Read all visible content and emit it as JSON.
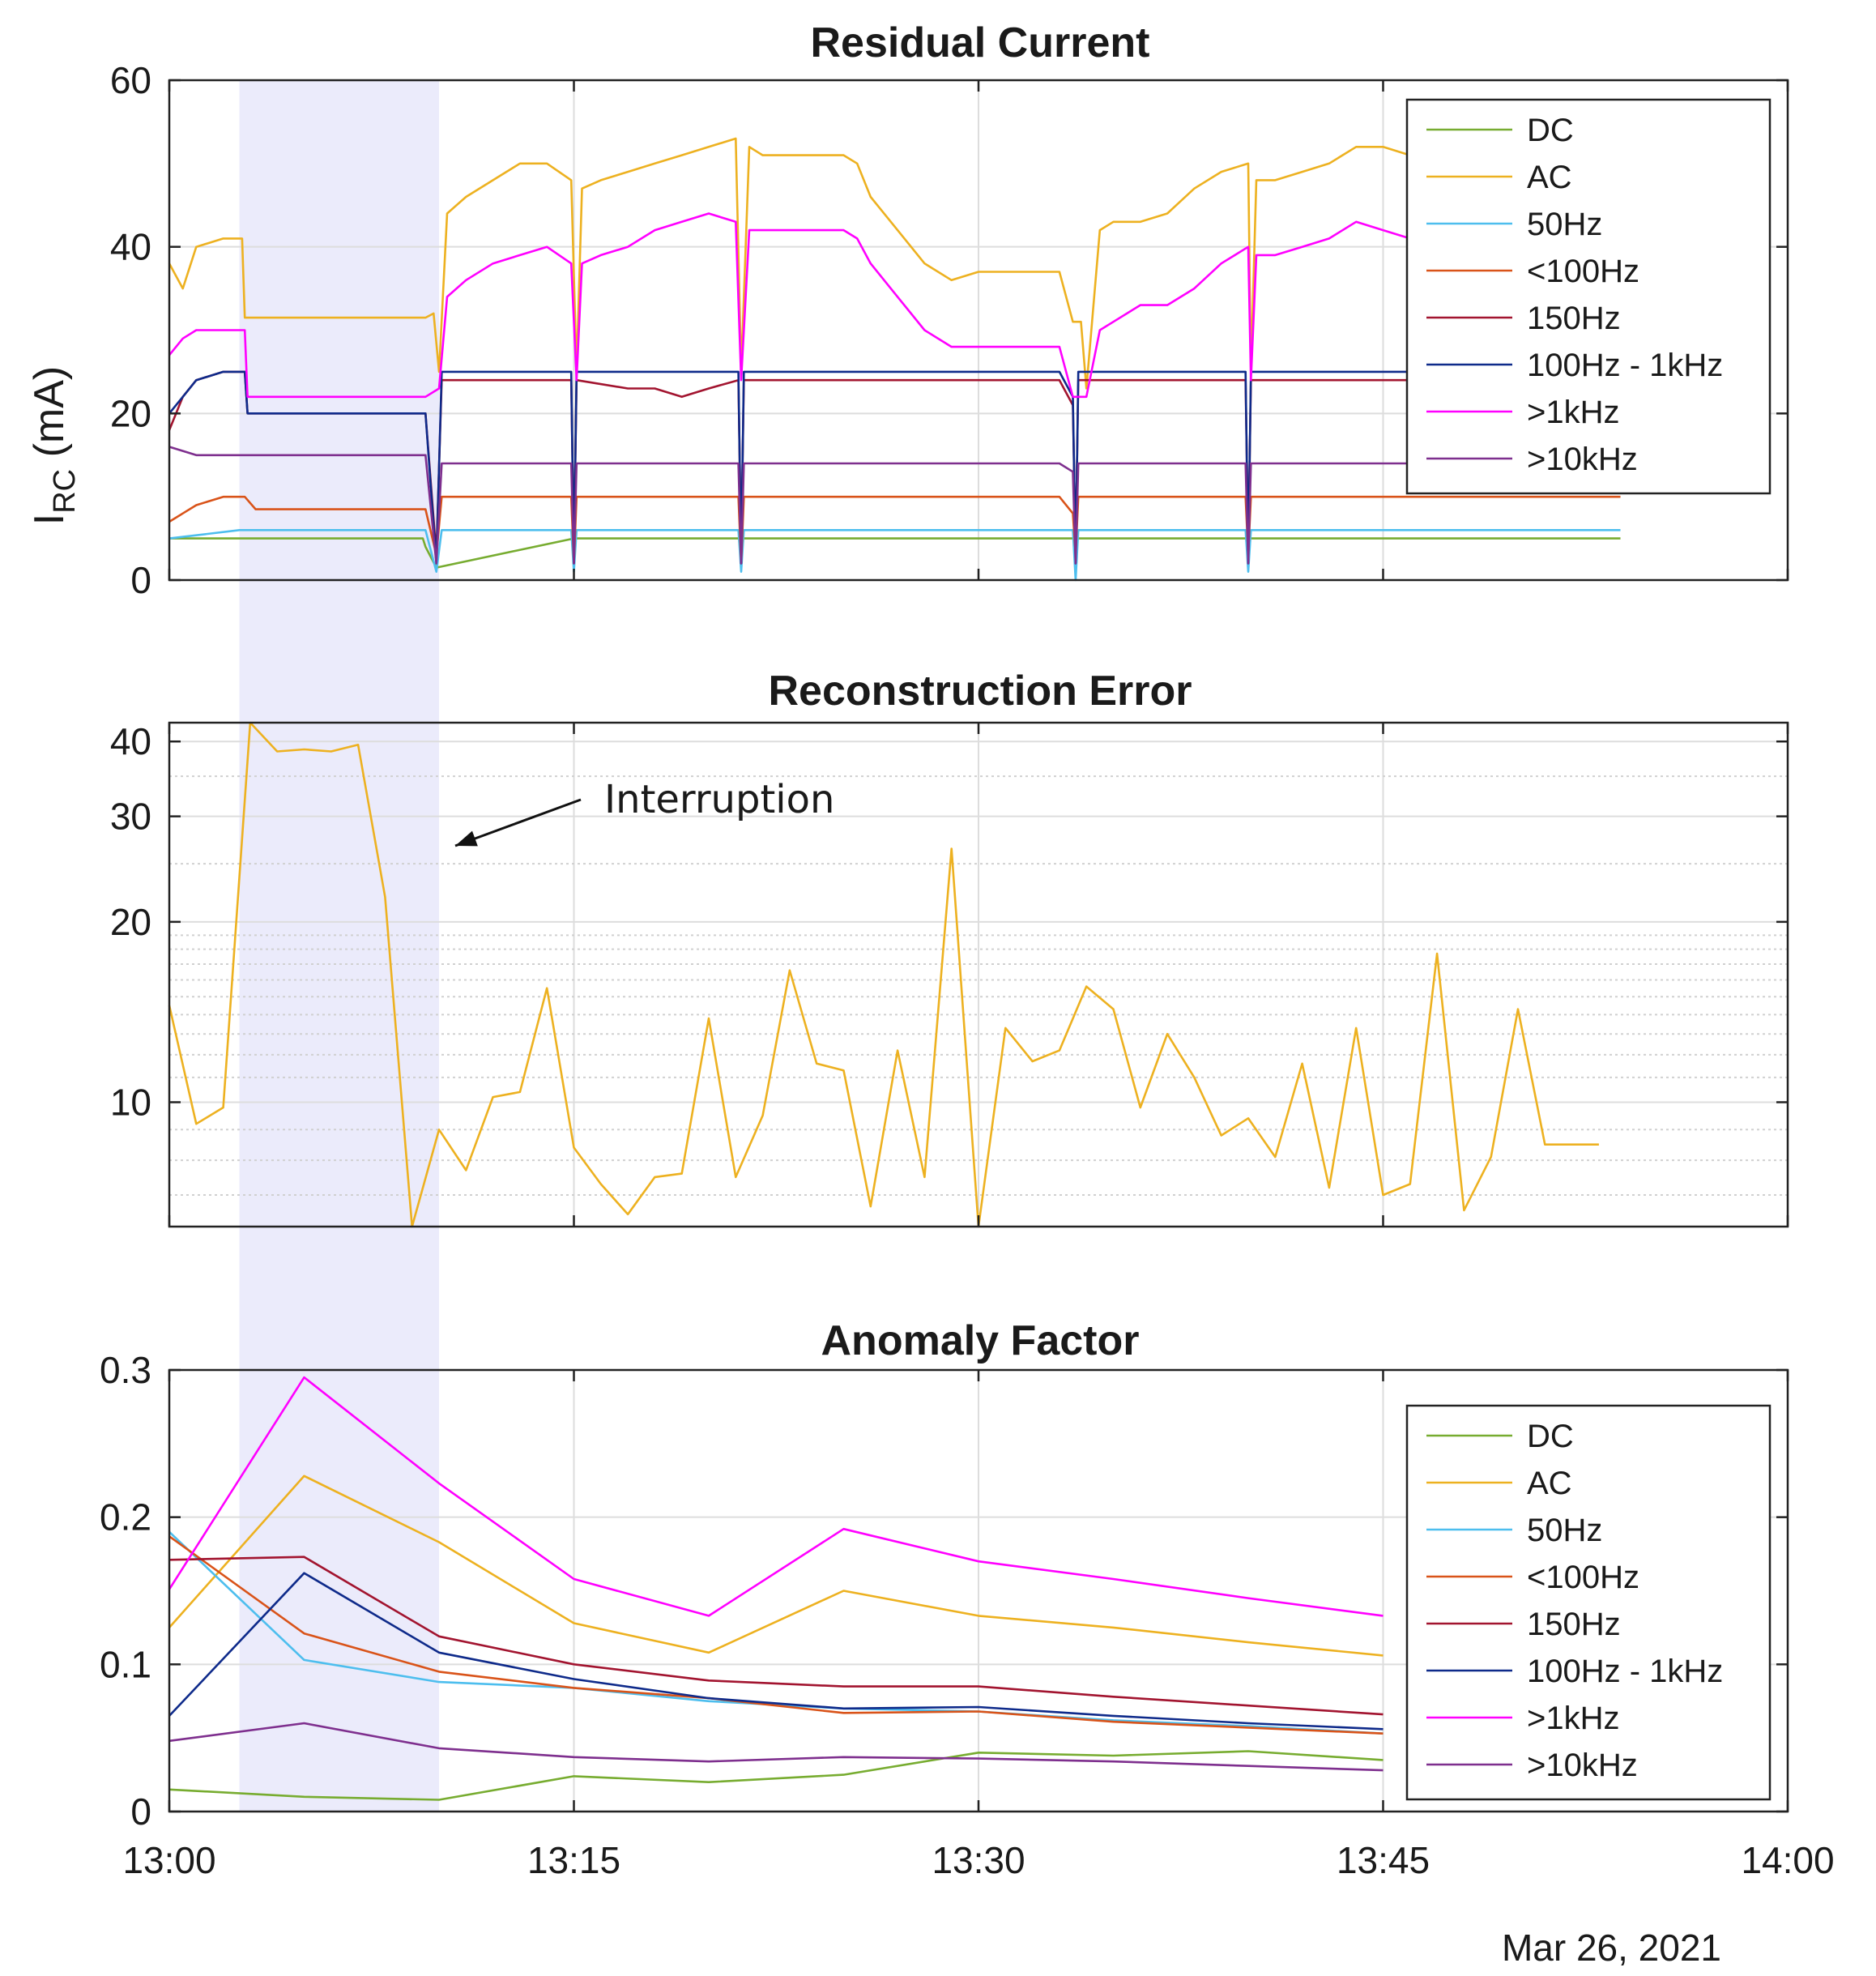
{
  "figure": {
    "date_label": "Mar 26, 2021",
    "x_axis": {
      "ticks": [
        {
          "min": 0,
          "label": "13:00"
        },
        {
          "min": 15,
          "label": "13:15"
        },
        {
          "min": 30,
          "label": "13:30"
        },
        {
          "min": 45,
          "label": "13:45"
        },
        {
          "min": 60,
          "label": "14:00"
        }
      ],
      "range_minutes": [
        0,
        60
      ]
    },
    "interruption_band_minutes": [
      2.6,
      10.0
    ],
    "colors": {
      "DC": "#77AC30",
      "AC": "#EDB120",
      "50Hz": "#4DBEEE",
      "<100Hz": "#D95319",
      "150Hz": "#A2142F",
      "100Hz - 1kHz": "#0E2A8A",
      ">1kHz": "#FF00FF",
      ">10kHz": "#7E2F8E",
      "band": "#EBEBFB",
      "grid": "#DDDDDD"
    }
  },
  "chart_data": [
    {
      "type": "line",
      "title": "Residual Current",
      "ylabel_main": "I",
      "ylabel_sub": "RC",
      "ylabel_unit": " (mA)",
      "ylim": [
        0,
        60
      ],
      "yticks": [
        "0",
        "20",
        "40",
        "60"
      ],
      "grid": true,
      "legend_placement": "top-right",
      "legend": [
        "DC",
        "AC",
        "50Hz",
        "<100Hz",
        "150Hz",
        "100Hz - 1kHz",
        ">1kHz",
        ">10kHz"
      ],
      "series": [
        {
          "name": "DC",
          "x": [
            0,
            2.5,
            2.6,
            9.4,
            9.5,
            9.9,
            15.0,
            15.1,
            21.2,
            21.3,
            33.5,
            33.6,
            40.0,
            40.1,
            53.8
          ],
          "y": [
            5,
            5,
            5,
            5,
            4,
            1.5,
            5,
            5,
            5,
            5,
            5,
            5,
            5,
            5,
            5
          ]
        },
        {
          "name": "AC",
          "x": [
            0,
            0.5,
            1,
            2,
            2.7,
            2.8,
            9.5,
            9.8,
            10.0,
            10.3,
            11,
            12,
            13,
            14,
            14.9,
            15.1,
            15.3,
            16,
            17,
            18,
            19,
            20,
            21,
            21.2,
            21.5,
            22,
            23,
            24,
            25,
            25.5,
            26,
            27,
            28,
            29,
            30,
            31,
            32,
            33,
            33.5,
            33.8,
            34.0,
            34.5,
            35,
            36,
            37,
            38,
            39,
            40,
            40.1,
            40.3,
            41,
            42,
            43,
            44,
            45,
            46,
            53.8
          ],
          "y": [
            38,
            35,
            40,
            41,
            41,
            31.5,
            31.5,
            32,
            25,
            44,
            46,
            48,
            50,
            50,
            48,
            25,
            47,
            48,
            49,
            50,
            51,
            52,
            53,
            25,
            52,
            51,
            51,
            51,
            51,
            50,
            46,
            42,
            38,
            36,
            37,
            37,
            37,
            37,
            31,
            31,
            23,
            42,
            43,
            43,
            44,
            47,
            49,
            50,
            25,
            48,
            48,
            49,
            50,
            52,
            52,
            51,
            51
          ]
        },
        {
          "name": "50Hz",
          "x": [
            0,
            2.6,
            9.5,
            9.9,
            10.1,
            14.9,
            15.0,
            15.1,
            21.1,
            21.2,
            21.3,
            33.5,
            33.6,
            33.7,
            39.9,
            40.0,
            40.1,
            46.5,
            53.8
          ],
          "y": [
            5,
            6,
            6,
            1,
            6,
            6,
            1,
            6,
            6,
            1,
            6,
            6,
            0,
            6,
            6,
            1,
            6,
            6,
            6
          ]
        },
        {
          "name": "<100Hz",
          "x": [
            0,
            0.5,
            1,
            2,
            2.8,
            3.2,
            9.5,
            9.9,
            10.1,
            14.9,
            15.0,
            15.1,
            21.1,
            21.2,
            21.3,
            33.0,
            33.5,
            33.6,
            33.7,
            39.9,
            40.0,
            40.1,
            53.8
          ],
          "y": [
            7,
            8,
            9,
            10,
            10,
            8.5,
            8.5,
            3,
            10,
            10,
            2,
            10,
            10,
            2,
            10,
            10,
            8,
            3,
            10,
            10,
            3,
            10,
            10
          ]
        },
        {
          "name": "150Hz",
          "x": [
            0,
            0.5,
            1,
            2,
            2.8,
            2.9,
            9.5,
            9.9,
            10.1,
            14.9,
            15.0,
            15.1,
            17,
            18,
            19,
            20,
            21.1,
            21.2,
            21.3,
            33.0,
            33.5,
            33.6,
            33.7,
            39.9,
            40.0,
            40.1,
            53.8
          ],
          "y": [
            18,
            22,
            24,
            25,
            25,
            20,
            20,
            3,
            24,
            24,
            3,
            24,
            23,
            23,
            22,
            23,
            24,
            3,
            24,
            24,
            21,
            3,
            24,
            24,
            3,
            24,
            24
          ]
        },
        {
          "name": "100Hz - 1kHz",
          "x": [
            0,
            0.5,
            1,
            2,
            2.8,
            2.9,
            9.5,
            9.9,
            10.1,
            14.9,
            15.0,
            15.1,
            21.1,
            21.2,
            21.3,
            33.0,
            33.5,
            33.6,
            33.7,
            39.9,
            40.0,
            40.1,
            53.8
          ],
          "y": [
            20,
            22,
            24,
            25,
            25,
            20,
            20,
            2,
            25,
            25,
            2,
            25,
            25,
            2,
            25,
            25,
            22,
            2,
            25,
            25,
            2,
            25,
            25
          ]
        },
        {
          "name": ">1kHz",
          "x": [
            0,
            0.5,
            1,
            2,
            2.8,
            2.9,
            9.5,
            10.0,
            10.3,
            11,
            12,
            13,
            14,
            14.9,
            15.1,
            15.3,
            16,
            17,
            18,
            19,
            20,
            21,
            21.2,
            21.5,
            22,
            24,
            25,
            25.5,
            26,
            27,
            28,
            29,
            30,
            31,
            32,
            33,
            33.5,
            33.8,
            34.0,
            34.5,
            35,
            36,
            37,
            38,
            39,
            40,
            40.1,
            40.3,
            41,
            42,
            43,
            44,
            45,
            46,
            53.8
          ],
          "y": [
            27,
            29,
            30,
            30,
            30,
            22,
            22,
            23,
            34,
            36,
            38,
            39,
            40,
            38,
            24,
            38,
            39,
            40,
            42,
            43,
            44,
            43,
            24,
            42,
            42,
            42,
            42,
            41,
            38,
            34,
            30,
            28,
            28,
            28,
            28,
            28,
            22,
            22,
            22,
            30,
            31,
            33,
            33,
            35,
            38,
            40,
            24,
            39,
            39,
            40,
            41,
            43,
            42,
            41,
            41
          ]
        },
        {
          "name": ">10kHz",
          "x": [
            0,
            0.5,
            1,
            2,
            2.8,
            2.9,
            9.5,
            9.9,
            10.1,
            14.9,
            15.0,
            15.1,
            21.1,
            21.2,
            21.3,
            33.0,
            33.5,
            33.6,
            33.7,
            39.9,
            40.0,
            40.1,
            53.8
          ],
          "y": [
            16,
            15.5,
            15,
            15,
            15,
            15,
            15,
            2,
            14,
            14,
            2,
            14,
            14,
            2,
            14,
            14,
            13,
            2,
            14,
            14,
            2,
            14,
            14
          ]
        }
      ]
    },
    {
      "type": "line",
      "title": "Reconstruction Error",
      "yscale": "log",
      "ylim": [
        6.2,
        43
      ],
      "yticks": [
        {
          "v": 10,
          "label": "10"
        },
        {
          "v": 20,
          "label": "20"
        },
        {
          "v": 30,
          "label": "30"
        },
        {
          "v": 40,
          "label": "40"
        }
      ],
      "minor_grid": [
        7,
        8,
        9,
        11,
        12,
        13,
        14,
        15,
        16,
        17,
        18,
        19,
        25,
        35
      ],
      "grid": true,
      "annotation": "Interruption",
      "series": [
        {
          "name": "AC",
          "x": [
            0,
            1,
            2,
            3,
            4,
            5,
            6,
            7,
            8,
            9,
            10,
            11,
            12,
            13,
            14,
            15,
            16,
            17,
            18,
            19,
            20,
            21,
            22,
            23,
            24,
            25,
            26,
            27,
            28,
            29,
            30,
            31,
            32,
            33,
            34,
            35,
            36,
            37,
            38,
            39,
            40,
            41,
            42,
            43,
            44,
            45,
            46,
            47,
            48,
            49,
            50,
            51,
            52,
            53
          ],
          "y": [
            14.5,
            9.2,
            9.8,
            43,
            38.5,
            38.8,
            38.5,
            39.5,
            22,
            6.2,
            9,
            7.7,
            10.2,
            10.4,
            15.5,
            8.4,
            7.3,
            6.5,
            7.5,
            7.6,
            13.8,
            7.5,
            9.5,
            16.6,
            11.6,
            11.3,
            6.7,
            12.2,
            7.5,
            26.5,
            6.2,
            13.3,
            11.7,
            12.2,
            15.6,
            14.3,
            9.8,
            13,
            11,
            8.8,
            9.4,
            8.1,
            11.6,
            7.2,
            13.3,
            7,
            7.3,
            17.7,
            6.6,
            8.1,
            14.3,
            8.5,
            8.5,
            8.5
          ]
        }
      ]
    },
    {
      "type": "line",
      "title": "Anomaly Factor",
      "ylim": [
        0,
        0.3
      ],
      "yticks": [
        "0",
        "0.1",
        "0.2",
        "0.3"
      ],
      "grid": true,
      "legend_placement": "top-right",
      "legend": [
        "DC",
        "AC",
        "50Hz",
        "<100Hz",
        "150Hz",
        "100Hz - 1kHz",
        ">1kHz",
        ">10kHz"
      ],
      "series": [
        {
          "name": "DC",
          "x": [
            0,
            5,
            10,
            15,
            20,
            25,
            30,
            35,
            40,
            45
          ],
          "y": [
            0.015,
            0.01,
            0.008,
            0.024,
            0.02,
            0.025,
            0.04,
            0.038,
            0.041,
            0.035
          ]
        },
        {
          "name": "AC",
          "x": [
            0,
            5,
            10,
            15,
            20,
            25,
            30,
            35,
            40,
            45
          ],
          "y": [
            0.125,
            0.228,
            0.183,
            0.128,
            0.108,
            0.15,
            0.133,
            0.125,
            0.115,
            0.106
          ]
        },
        {
          "name": "50Hz",
          "x": [
            0,
            5,
            10,
            15,
            20,
            25,
            30,
            35,
            40,
            45
          ],
          "y": [
            0.19,
            0.103,
            0.088,
            0.084,
            0.075,
            0.07,
            0.068,
            0.062,
            0.058,
            0.053
          ]
        },
        {
          "name": "<100Hz",
          "x": [
            0,
            5,
            10,
            15,
            20,
            25,
            30,
            35,
            40,
            45
          ],
          "y": [
            0.187,
            0.121,
            0.095,
            0.084,
            0.077,
            0.067,
            0.068,
            0.061,
            0.057,
            0.053
          ]
        },
        {
          "name": "150Hz",
          "x": [
            0,
            5,
            10,
            15,
            20,
            25,
            30,
            35,
            40,
            45
          ],
          "y": [
            0.171,
            0.173,
            0.119,
            0.1,
            0.089,
            0.085,
            0.085,
            0.078,
            0.072,
            0.066
          ]
        },
        {
          "name": "100Hz - 1kHz",
          "x": [
            0,
            5,
            10,
            15,
            20,
            25,
            30,
            35,
            40,
            45
          ],
          "y": [
            0.065,
            0.162,
            0.108,
            0.09,
            0.077,
            0.07,
            0.071,
            0.065,
            0.06,
            0.056
          ]
        },
        {
          "name": ">1kHz",
          "x": [
            0,
            5,
            10,
            15,
            20,
            25,
            30,
            35,
            40,
            45
          ],
          "y": [
            0.151,
            0.295,
            0.223,
            0.158,
            0.133,
            0.192,
            0.17,
            0.158,
            0.145,
            0.133
          ]
        },
        {
          "name": ">10kHz",
          "x": [
            0,
            5,
            10,
            15,
            20,
            25,
            30,
            35,
            40,
            45
          ],
          "y": [
            0.048,
            0.06,
            0.043,
            0.037,
            0.034,
            0.037,
            0.036,
            0.034,
            0.031,
            0.028
          ]
        }
      ]
    }
  ]
}
